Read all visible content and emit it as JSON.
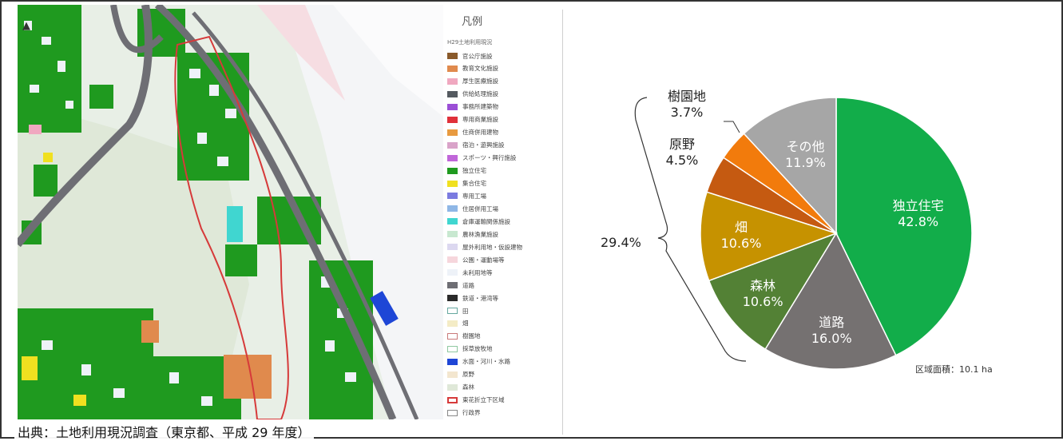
{
  "source_text": "出典：土地利用現況調査（東京都、平成 29 年度）",
  "legend": {
    "title": "凡例",
    "subtitle": "H29土地利用現況",
    "items": [
      {
        "label": "官公庁施設",
        "color": "#8a5a2b",
        "style": "fill"
      },
      {
        "label": "教育文化施設",
        "color": "#e08a4d",
        "style": "fill"
      },
      {
        "label": "厚生医療施設",
        "color": "#f0a8c0",
        "style": "fill"
      },
      {
        "label": "供給処理施設",
        "color": "#555a60",
        "style": "fill"
      },
      {
        "label": "事務所建築物",
        "color": "#9b4fd6",
        "style": "fill"
      },
      {
        "label": "専用商業施設",
        "color": "#e0303a",
        "style": "fill"
      },
      {
        "label": "住商併用建物",
        "color": "#e89a40",
        "style": "fill"
      },
      {
        "label": "宿泊・遊興施設",
        "color": "#d9a3c9",
        "style": "fill"
      },
      {
        "label": "スポーツ・興行施設",
        "color": "#c066d9",
        "style": "fill"
      },
      {
        "label": "独立住宅",
        "color": "#1f9a1f",
        "style": "fill"
      },
      {
        "label": "集合住宅",
        "color": "#f0e020",
        "style": "fill"
      },
      {
        "label": "専用工場",
        "color": "#7b7be0",
        "style": "fill"
      },
      {
        "label": "住居併用工場",
        "color": "#8fb7e6",
        "style": "fill"
      },
      {
        "label": "倉庫運輸関係施設",
        "color": "#40d6d0",
        "style": "fill"
      },
      {
        "label": "農林漁業施設",
        "color": "#c8e8d0",
        "style": "fill"
      },
      {
        "label": "屋外利用地・仮設建物",
        "color": "#dcd8f0",
        "style": "fill"
      },
      {
        "label": "公園・運動場等",
        "color": "#f6d6dc",
        "style": "fill"
      },
      {
        "label": "未利用地等",
        "color": "#eef2f8",
        "style": "fill"
      },
      {
        "label": "道路",
        "color": "#6e6e74",
        "style": "fill"
      },
      {
        "label": "鉄道・港湾等",
        "color": "#2a2a2a",
        "style": "fill"
      },
      {
        "label": "田",
        "color": "#66a8a0",
        "style": "outline"
      },
      {
        "label": "畑",
        "color": "#f4ecc6",
        "style": "fill"
      },
      {
        "label": "樹園地",
        "color": "#c97a7a",
        "style": "outline"
      },
      {
        "label": "採草放牧地",
        "color": "#8fc8a0",
        "style": "outline"
      },
      {
        "label": "水面・河川・水路",
        "color": "#1e46d6",
        "style": "fill"
      },
      {
        "label": "原野",
        "color": "#f3e6cf",
        "style": "fill"
      },
      {
        "label": "森林",
        "color": "#dfe8d8",
        "style": "fill"
      },
      {
        "label": "東花折立下区域",
        "color": "#d63a3a",
        "style": "thick-outline"
      },
      {
        "label": "行政界",
        "color": "#888888",
        "style": "outline"
      }
    ]
  },
  "chart_data": {
    "type": "pie",
    "title": "",
    "slices": [
      {
        "label": "独立住宅",
        "value": 42.8,
        "display": "42.8%",
        "color": "#12ad4a"
      },
      {
        "label": "道路",
        "value": 16.0,
        "display": "16.0%",
        "color": "#757171"
      },
      {
        "label": "森林",
        "value": 10.6,
        "display": "10.6%",
        "color": "#538135"
      },
      {
        "label": "畑",
        "value": 10.6,
        "display": "10.6%",
        "color": "#c69200"
      },
      {
        "label": "原野",
        "value": 4.5,
        "display": "4.5%",
        "color": "#c55a11"
      },
      {
        "label": "樹園地",
        "value": 3.7,
        "display": "3.7%",
        "color": "#f27b0c"
      },
      {
        "label": "その他",
        "value": 11.9,
        "display": "11.9%",
        "color": "#a6a6a6"
      }
    ],
    "bracket_total": "29.4%",
    "area_note": "区域面積：10.1 ha"
  }
}
